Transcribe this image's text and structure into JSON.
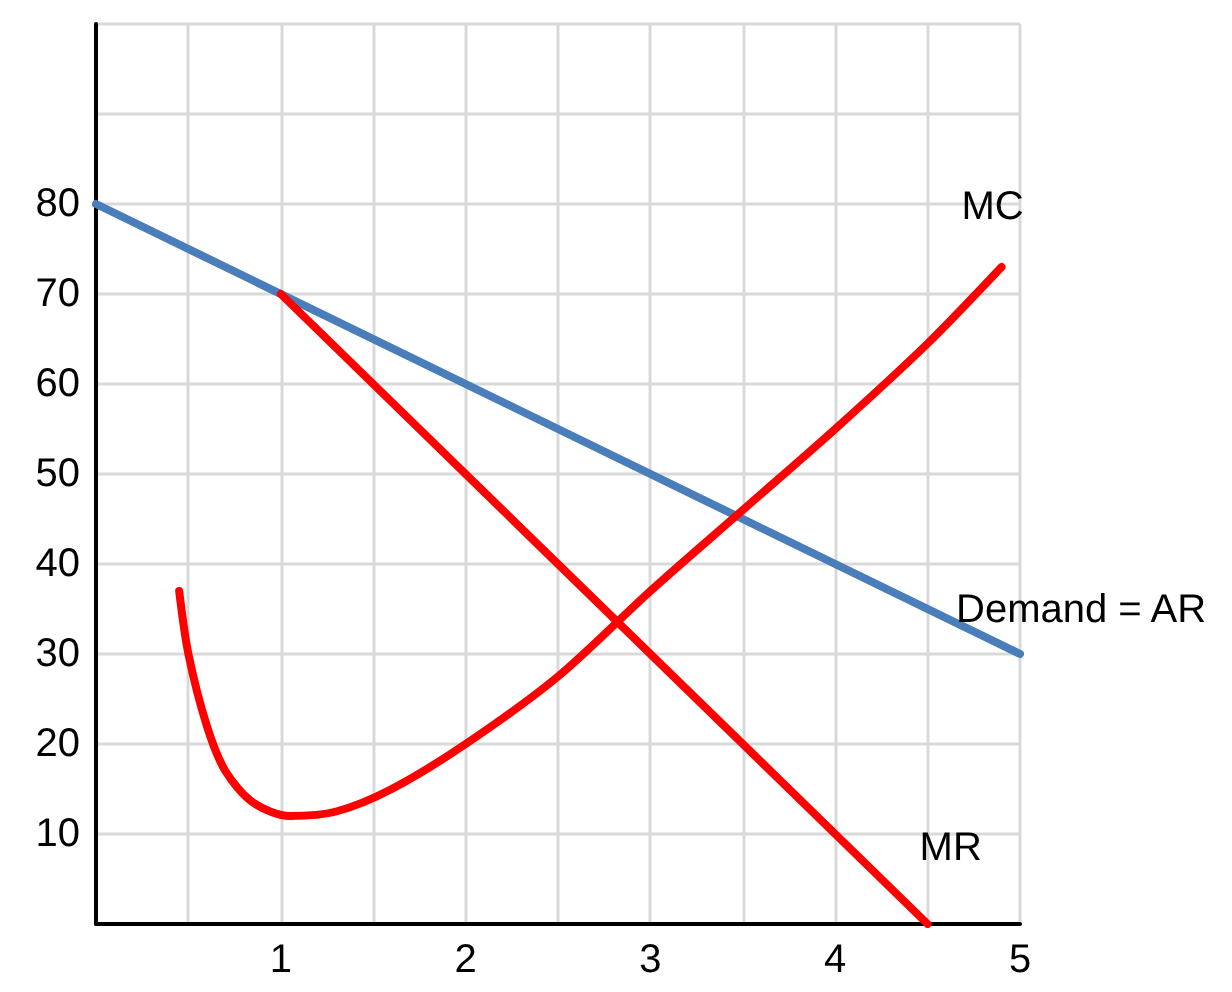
{
  "chart_data": {
    "type": "line",
    "xlim": [
      0,
      5
    ],
    "ylim": [
      0,
      100
    ],
    "xticks": [
      {
        "value": 0,
        "label": null
      },
      {
        "value": 0.5,
        "label": null
      },
      1,
      {
        "value": 1.5,
        "label": null
      },
      2,
      {
        "value": 2.5,
        "label": null
      },
      3,
      {
        "value": 3.5,
        "label": null
      },
      4,
      {
        "value": 4.5,
        "label": null
      },
      5
    ],
    "yticks": [
      {
        "value": 0,
        "label": null
      },
      10,
      20,
      30,
      40,
      50,
      60,
      70,
      80,
      {
        "value": 90,
        "label": null
      },
      {
        "value": 100,
        "label": null
      }
    ],
    "grid": true,
    "marker": "none",
    "line_style": "solid",
    "series": [
      {
        "name": "Demand = AR",
        "color": "#4a7ebb",
        "x": [
          0,
          5
        ],
        "values": [
          80,
          30
        ]
      },
      {
        "name": "MR",
        "color": "#ff0000",
        "x": [
          1,
          4.5
        ],
        "values": [
          70,
          0
        ]
      },
      {
        "name": "MC",
        "color": "#ff0000",
        "x": [
          0.45,
          0.5,
          0.6,
          0.7,
          0.85,
          1.05,
          1.3,
          1.6,
          2,
          2.5,
          3,
          3.5,
          4,
          4.5,
          4.9
        ],
        "values": [
          37,
          30,
          22,
          17,
          13.5,
          12,
          12.5,
          15,
          20,
          27.5,
          37,
          46,
          55,
          64.5,
          73
        ]
      }
    ]
  }
}
